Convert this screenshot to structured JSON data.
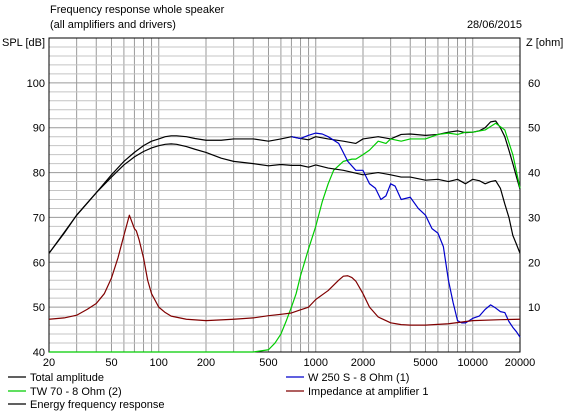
{
  "chart_data": {
    "type": "line",
    "title": "Frequency response whole speaker",
    "subtitle": "(all amplifiers and drivers)",
    "date": "28/06/2015",
    "ylabel_left": "SPL [dB]",
    "ylabel_right": "Z [ohm]",
    "x_scale": "log",
    "xlim": [
      20,
      20000
    ],
    "ylim_left": [
      40,
      110
    ],
    "ylim_right": [
      0,
      70
    ],
    "x_ticks": [
      20,
      50,
      100,
      200,
      500,
      1000,
      2000,
      5000,
      10000,
      20000
    ],
    "x_tick_labels": [
      "20",
      "50",
      "100",
      "200",
      "500",
      "1000",
      "2000",
      "5000",
      "10000",
      "20000"
    ],
    "y_ticks_left": [
      40,
      50,
      60,
      70,
      80,
      90,
      100
    ],
    "y_ticks_right": [
      10,
      20,
      30,
      40,
      50,
      60
    ],
    "grid": true,
    "legend_position": "bottom",
    "series": [
      {
        "name": "Total amplitude",
        "color": "#000000",
        "axis": "left",
        "x": [
          20,
          25,
          30,
          40,
          50,
          60,
          70,
          80,
          90,
          100,
          110,
          120,
          130,
          150,
          170,
          200,
          250,
          300,
          400,
          500,
          600,
          700,
          800,
          900,
          1000,
          1200,
          1500,
          1800,
          2000,
          2500,
          3000,
          3500,
          4000,
          5000,
          6000,
          7000,
          8000,
          9000,
          10000,
          11000,
          12000,
          13000,
          14000,
          15000,
          16000,
          17000,
          18000,
          19000,
          20000
        ],
        "y": [
          62,
          66.5,
          70.5,
          75.5,
          79.5,
          82.5,
          84.5,
          86,
          87,
          87.5,
          88,
          88.2,
          88.2,
          88,
          87.6,
          87.2,
          87.2,
          87.5,
          87.5,
          87,
          87.5,
          88,
          87.6,
          87.3,
          88,
          87.5,
          87,
          86.5,
          87.5,
          88,
          87.5,
          88.5,
          88.6,
          88.3,
          88.5,
          89,
          89.3,
          88.9,
          89,
          89.3,
          90,
          91.3,
          91.5,
          90,
          88,
          85,
          82,
          79,
          76.3
        ]
      },
      {
        "name": "TW 70 - 8 Ohm (2)",
        "color": "#00cc00",
        "axis": "left",
        "x": [
          20,
          50,
          100,
          200,
          400,
          500,
          550,
          600,
          650,
          700,
          750,
          800,
          900,
          1000,
          1100,
          1200,
          1300,
          1500,
          1700,
          1800,
          2000,
          2200,
          2500,
          2800,
          3000,
          3500,
          4000,
          5000,
          6000,
          7000,
          8000,
          9000,
          10000,
          12000,
          14000,
          16000,
          18000,
          20000
        ],
        "y": [
          40,
          40,
          40,
          40,
          40,
          40.5,
          42,
          44,
          47,
          50,
          53,
          57,
          63,
          68,
          73.5,
          77.5,
          80.5,
          82.5,
          83,
          83,
          84,
          85,
          87,
          86.5,
          87.5,
          87,
          87.5,
          87.5,
          88.5,
          88.8,
          88.5,
          89,
          89,
          89.5,
          91,
          89.5,
          84,
          76.5
        ]
      },
      {
        "name": "Energy frequency response",
        "color": "#000000",
        "axis": "left",
        "x": [
          20,
          30,
          40,
          50,
          60,
          70,
          80,
          90,
          100,
          110,
          120,
          130,
          150,
          170,
          200,
          250,
          300,
          400,
          500,
          600,
          700,
          800,
          900,
          1000,
          1200,
          1500,
          2000,
          2500,
          3000,
          3500,
          4000,
          5000,
          6000,
          7000,
          8000,
          9000,
          10000,
          11000,
          12000,
          13000,
          14000,
          15000,
          16000,
          17000,
          18000,
          19000,
          20000
        ],
        "y": [
          62,
          70.5,
          75.5,
          79,
          81.7,
          83.5,
          84.7,
          85.5,
          86,
          86.3,
          86.4,
          86.3,
          85.8,
          85.2,
          84.5,
          83.2,
          82.5,
          82,
          81.5,
          81.8,
          81.6,
          81.6,
          81.2,
          81.7,
          81,
          80.5,
          79.5,
          80,
          79.5,
          79,
          79,
          78.3,
          78.5,
          78,
          78.5,
          77.5,
          78.5,
          78.2,
          77.5,
          78,
          78.2,
          76.5,
          73,
          70,
          66,
          64,
          62
        ]
      },
      {
        "name": "W 250 S - 8 Ohm  (1)",
        "color": "#0000cc",
        "axis": "left",
        "x": [
          700,
          800,
          900,
          1000,
          1100,
          1200,
          1400,
          1600,
          1800,
          2000,
          2200,
          2400,
          2600,
          2800,
          3000,
          3200,
          3500,
          4000,
          4500,
          5000,
          5500,
          6000,
          6500,
          7000,
          7500,
          8000,
          8500,
          9000,
          10000,
          11000,
          12000,
          13000,
          14000,
          15000,
          16000,
          17000,
          18000,
          19000,
          20000
        ],
        "y": [
          88,
          87.6,
          88.3,
          88.8,
          88.6,
          88,
          86.5,
          82.5,
          80.5,
          80.5,
          77.5,
          76.5,
          74,
          74.8,
          77.5,
          77,
          74,
          74.5,
          72,
          70.5,
          67.5,
          66.5,
          63.5,
          56,
          51,
          47,
          46.5,
          46.5,
          47.5,
          48,
          49.5,
          50.5,
          49.8,
          49,
          48.8,
          46.8,
          45.5,
          44.5,
          43.3
        ]
      },
      {
        "name": "Impedance at amplifier 1",
        "color": "#800000",
        "axis": "right",
        "x": [
          20,
          25,
          30,
          35,
          40,
          45,
          50,
          55,
          60,
          65,
          70,
          72,
          75,
          80,
          85,
          90,
          100,
          110,
          120,
          150,
          200,
          300,
          400,
          500,
          600,
          700,
          800,
          900,
          1000,
          1200,
          1400,
          1500,
          1600,
          1700,
          1800,
          2000,
          2200,
          2500,
          3000,
          3500,
          4000,
          5000,
          7000,
          10000,
          15000,
          20000
        ],
        "y": [
          7.3,
          7.6,
          8.2,
          9.5,
          10.8,
          13,
          16.5,
          21,
          26,
          30.5,
          27.5,
          27,
          25,
          21,
          16,
          13,
          10,
          8.8,
          8,
          7.3,
          7,
          7.3,
          7.6,
          8.1,
          8.4,
          8.7,
          9.4,
          10,
          11.7,
          13.7,
          16,
          16.9,
          17,
          16.6,
          15.8,
          13,
          10,
          7.8,
          6.5,
          6.1,
          6,
          6,
          6.3,
          7,
          7.2,
          7.3
        ]
      }
    ]
  }
}
